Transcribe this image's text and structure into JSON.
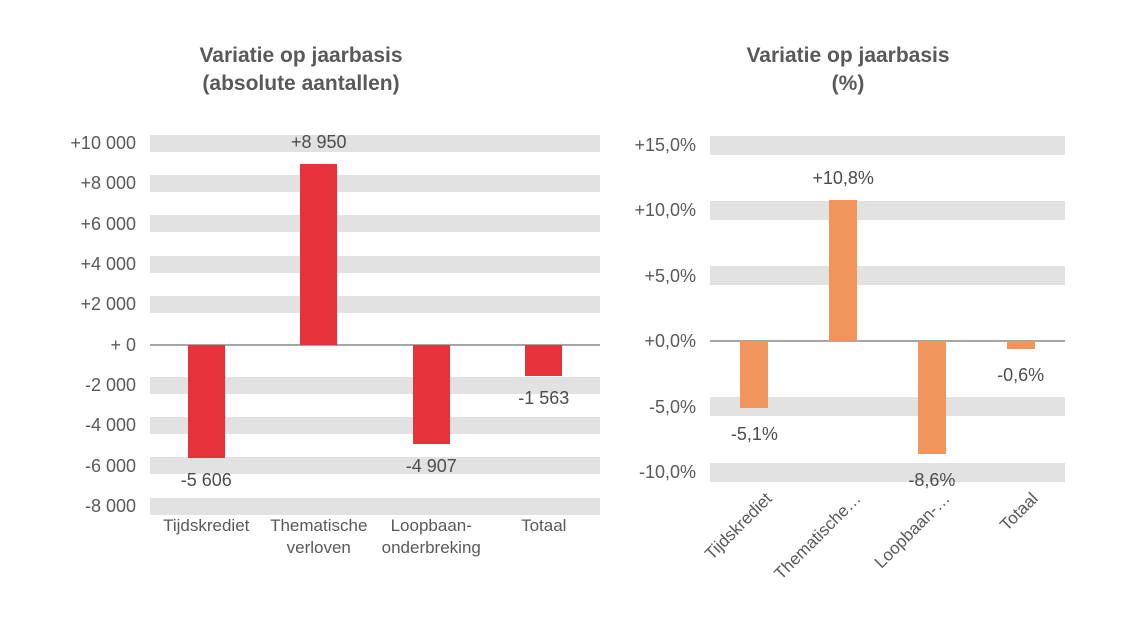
{
  "figure": {
    "background": "#ffffff",
    "text_color": "#595959",
    "data_label_color": "#4d4d4d",
    "gridline_color": "#e2e2e2",
    "zero_line_color": "#a6a6a6"
  },
  "chart_data": [
    {
      "type": "bar",
      "title": "Variatie op jaarbasis (absolute aantallen)",
      "title_lines": [
        "Variatie op jaarbasis",
        "(absolute aantallen)"
      ],
      "categories": [
        "Tijdskrediet",
        "Thematische verloven",
        "Loopbaan-onderbreking",
        "Totaal"
      ],
      "category_label_lines": [
        [
          "Tijdskrediet"
        ],
        [
          "Thematische",
          "verloven"
        ],
        [
          "Loopbaan-",
          "onderbreking"
        ],
        [
          "Totaal"
        ]
      ],
      "values": [
        -5606,
        8950,
        -4907,
        -1563
      ],
      "data_labels": [
        "-5 606",
        "+8 950",
        "-4 907",
        "-1 563"
      ],
      "bar_color": "#e5323b",
      "ylim": [
        -8000,
        10000
      ],
      "y_tick_interval": 2000,
      "y_ticks": [
        {
          "value": 10000,
          "label": "+10 000"
        },
        {
          "value": 8000,
          "label": "+8 000"
        },
        {
          "value": 6000,
          "label": "+6 000"
        },
        {
          "value": 4000,
          "label": "+4 000"
        },
        {
          "value": 2000,
          "label": "+2 000"
        },
        {
          "value": 0,
          "label": "+ 0"
        },
        {
          "value": -2000,
          "label": "-2 000"
        },
        {
          "value": -4000,
          "label": "-4 000"
        },
        {
          "value": -6000,
          "label": "-6 000"
        },
        {
          "value": -8000,
          "label": "-8 000"
        }
      ],
      "grid": "horizontal-stripes",
      "legend": "none",
      "x_label_rotation": 0
    },
    {
      "type": "bar",
      "title": "Variatie op jaarbasis (%)",
      "title_lines": [
        "Variatie op jaarbasis",
        "(%)"
      ],
      "categories": [
        "Tijdskrediet",
        "Thematische…",
        "Loopbaan-…",
        "Totaal"
      ],
      "category_label_lines": [
        [
          "Tijdskrediet"
        ],
        [
          "Thematische…"
        ],
        [
          "Loopbaan-…"
        ],
        [
          "Totaal"
        ]
      ],
      "values": [
        -5.1,
        10.8,
        -8.6,
        -0.6
      ],
      "data_labels": [
        "-5,1%",
        "+10,8%",
        "-8,6%",
        "-0,6%"
      ],
      "bar_color": "#f0965c",
      "ylim": [
        -10,
        15
      ],
      "y_tick_interval": 5,
      "y_ticks": [
        {
          "value": 15,
          "label": "+15,0%"
        },
        {
          "value": 10,
          "label": "+10,0%"
        },
        {
          "value": 5,
          "label": "+5,0%"
        },
        {
          "value": 0,
          "label": "+0,0%"
        },
        {
          "value": -5,
          "label": "-5,0%"
        },
        {
          "value": -10,
          "label": "-10,0%"
        }
      ],
      "grid": "horizontal-stripes",
      "legend": "none",
      "x_label_rotation": -45
    }
  ]
}
